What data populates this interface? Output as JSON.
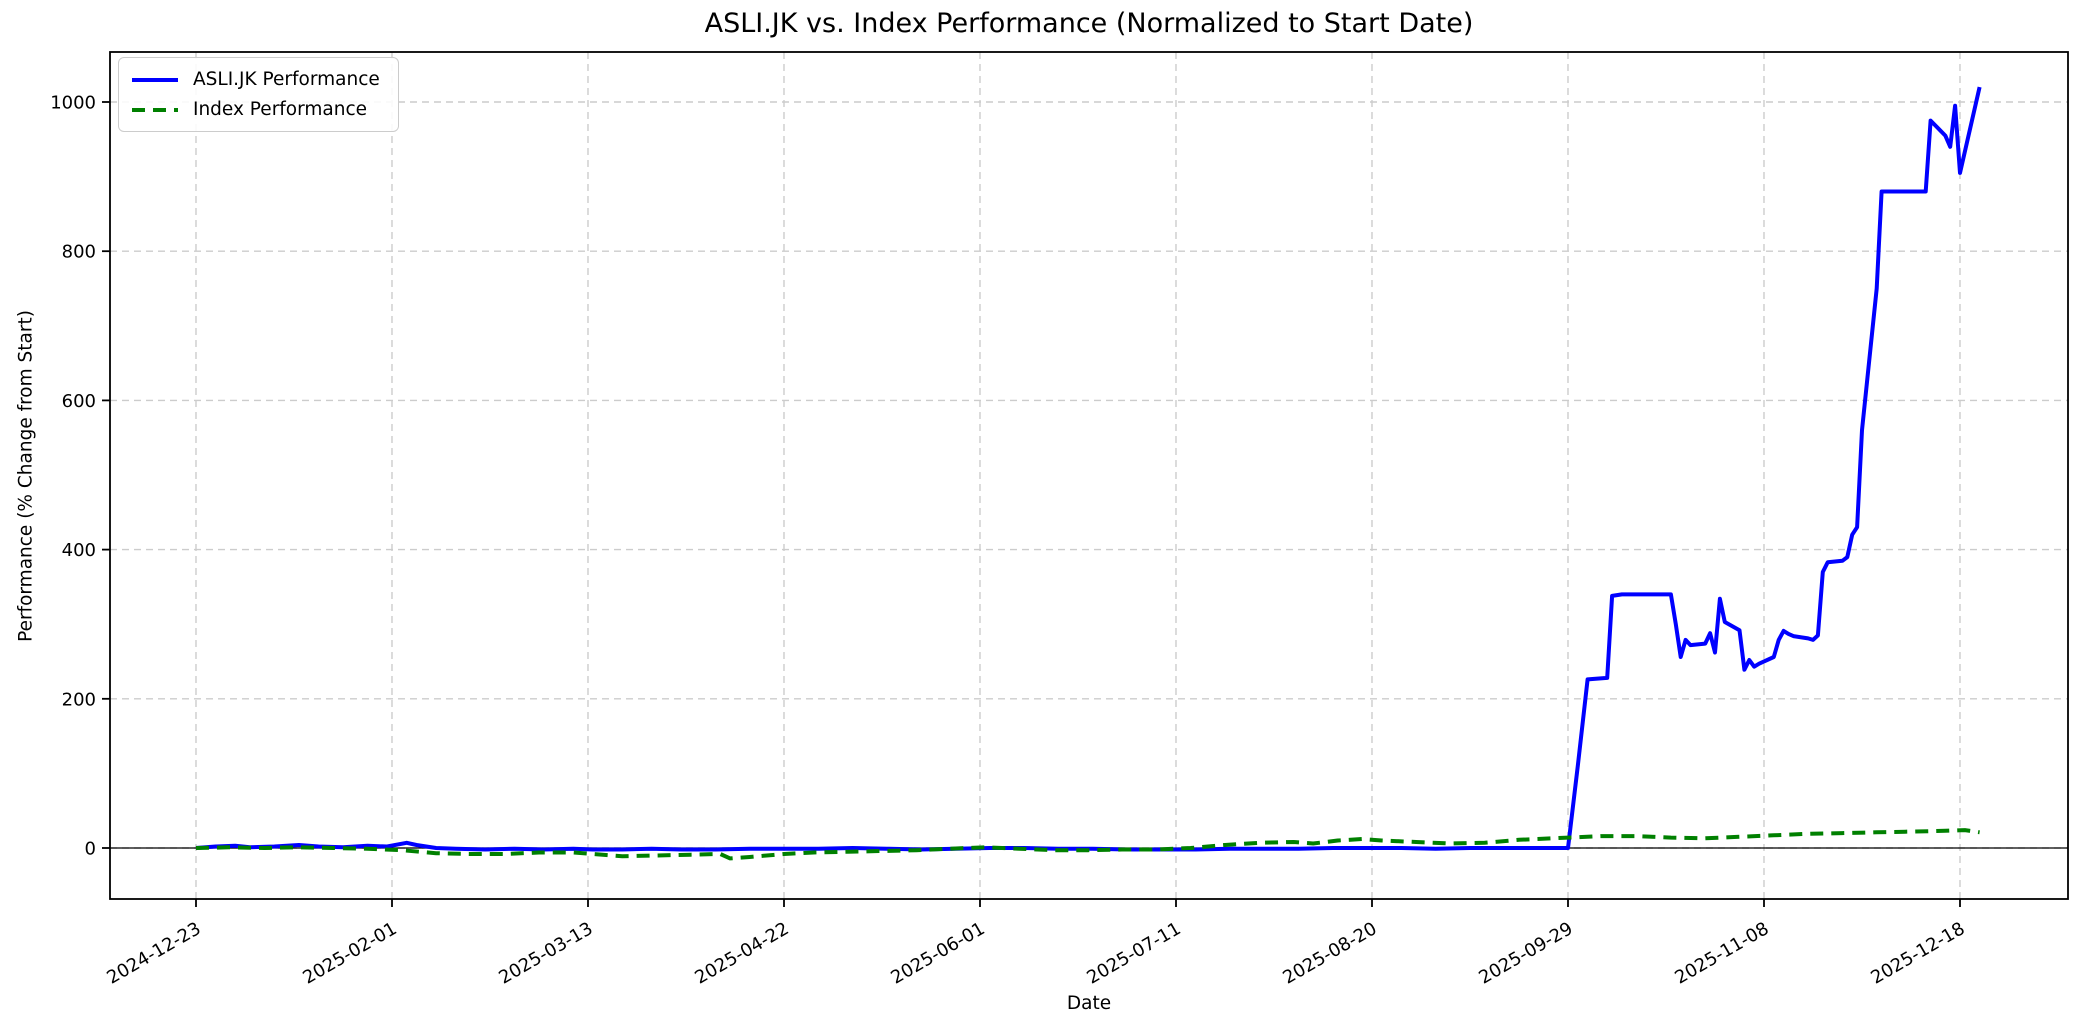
{
  "figure": {
    "background": "#ffffff"
  },
  "chart_data": {
    "type": "line",
    "title": "ASLI.JK vs. Index Performance (Normalized to Start Date)",
    "xlabel": "Date",
    "ylabel": "Performance (% Change from Start)",
    "grid": true,
    "grid_color": "#cccccc",
    "zero_line_color": "#000000",
    "legend_position": "upper-left",
    "x_start_date": "2024-12-23",
    "x_end_date": "2025-12-22",
    "x_ticks": [
      "2024-12-23",
      "2025-02-01",
      "2025-03-13",
      "2025-04-22",
      "2025-06-01",
      "2025-07-11",
      "2025-08-20",
      "2025-09-29",
      "2025-11-08",
      "2025-12-18"
    ],
    "y_ticks": [
      0,
      200,
      400,
      600,
      800,
      1000
    ],
    "ylim": [
      -68,
      1067
    ],
    "xlim": [
      "2024-12-05",
      "2026-01-09"
    ],
    "series": [
      {
        "name": "ASLI.JK Performance",
        "color": "#0000ff",
        "line_style": "solid",
        "points": [
          [
            "2024-12-23",
            0
          ],
          [
            "2024-12-27",
            2
          ],
          [
            "2024-12-31",
            3
          ],
          [
            "2025-01-03",
            1
          ],
          [
            "2025-01-08",
            2
          ],
          [
            "2025-01-13",
            4
          ],
          [
            "2025-01-17",
            2
          ],
          [
            "2025-01-22",
            1
          ],
          [
            "2025-01-27",
            3
          ],
          [
            "2025-01-31",
            2
          ],
          [
            "2025-02-04",
            7
          ],
          [
            "2025-02-06",
            4
          ],
          [
            "2025-02-10",
            0
          ],
          [
            "2025-02-14",
            -1
          ],
          [
            "2025-02-20",
            -2
          ],
          [
            "2025-02-26",
            -1
          ],
          [
            "2025-03-04",
            -2
          ],
          [
            "2025-03-10",
            -1
          ],
          [
            "2025-03-14",
            -2
          ],
          [
            "2025-03-20",
            -2
          ],
          [
            "2025-03-26",
            -1
          ],
          [
            "2025-04-01",
            -2
          ],
          [
            "2025-04-08",
            -2
          ],
          [
            "2025-04-15",
            -1
          ],
          [
            "2025-04-22",
            -1
          ],
          [
            "2025-04-29",
            -1
          ],
          [
            "2025-05-06",
            0
          ],
          [
            "2025-05-13",
            -1
          ],
          [
            "2025-05-20",
            -2
          ],
          [
            "2025-05-27",
            -1
          ],
          [
            "2025-06-03",
            0
          ],
          [
            "2025-06-10",
            0
          ],
          [
            "2025-06-17",
            -1
          ],
          [
            "2025-06-24",
            -1
          ],
          [
            "2025-07-01",
            -2
          ],
          [
            "2025-07-08",
            -2
          ],
          [
            "2025-07-15",
            -2
          ],
          [
            "2025-07-22",
            -1
          ],
          [
            "2025-07-29",
            -1
          ],
          [
            "2025-08-05",
            -1
          ],
          [
            "2025-08-12",
            0
          ],
          [
            "2025-08-19",
            0
          ],
          [
            "2025-08-26",
            0
          ],
          [
            "2025-09-02",
            -1
          ],
          [
            "2025-09-09",
            0
          ],
          [
            "2025-09-16",
            0
          ],
          [
            "2025-09-23",
            0
          ],
          [
            "2025-09-29",
            0
          ],
          [
            "2025-10-01",
            110
          ],
          [
            "2025-10-03",
            226
          ],
          [
            "2025-10-07",
            228
          ],
          [
            "2025-10-08",
            338
          ],
          [
            "2025-10-10",
            340
          ],
          [
            "2025-10-20",
            340
          ],
          [
            "2025-10-21",
            300
          ],
          [
            "2025-10-22",
            256
          ],
          [
            "2025-10-23",
            279
          ],
          [
            "2025-10-24",
            272
          ],
          [
            "2025-10-27",
            274
          ],
          [
            "2025-10-28",
            288
          ],
          [
            "2025-10-29",
            262
          ],
          [
            "2025-10-30",
            334
          ],
          [
            "2025-10-31",
            303
          ],
          [
            "2025-11-03",
            292
          ],
          [
            "2025-11-04",
            239
          ],
          [
            "2025-11-05",
            252
          ],
          [
            "2025-11-06",
            243
          ],
          [
            "2025-11-07",
            247
          ],
          [
            "2025-11-10",
            256
          ],
          [
            "2025-11-11",
            279
          ],
          [
            "2025-11-12",
            291
          ],
          [
            "2025-11-13",
            287
          ],
          [
            "2025-11-14",
            284
          ],
          [
            "2025-11-17",
            281
          ],
          [
            "2025-11-18",
            279
          ],
          [
            "2025-11-19",
            285
          ],
          [
            "2025-11-20",
            370
          ],
          [
            "2025-11-21",
            383
          ],
          [
            "2025-11-24",
            385
          ],
          [
            "2025-11-25",
            390
          ],
          [
            "2025-11-26",
            420
          ],
          [
            "2025-11-27",
            430
          ],
          [
            "2025-11-28",
            560
          ],
          [
            "2025-12-01",
            750
          ],
          [
            "2025-12-02",
            880
          ],
          [
            "2025-12-11",
            880
          ],
          [
            "2025-12-12",
            975
          ],
          [
            "2025-12-15",
            955
          ],
          [
            "2025-12-16",
            940
          ],
          [
            "2025-12-17",
            995
          ],
          [
            "2025-12-18",
            905
          ],
          [
            "2025-12-22",
            1020
          ]
        ]
      },
      {
        "name": "Index Performance",
        "color": "#008000",
        "line_style": "dashed",
        "points": [
          [
            "2024-12-23",
            0
          ],
          [
            "2024-12-30",
            1
          ],
          [
            "2025-01-06",
            0
          ],
          [
            "2025-01-13",
            1
          ],
          [
            "2025-01-20",
            0
          ],
          [
            "2025-01-27",
            -1
          ],
          [
            "2025-02-03",
            -3
          ],
          [
            "2025-02-10",
            -7
          ],
          [
            "2025-02-17",
            -8
          ],
          [
            "2025-02-24",
            -8
          ],
          [
            "2025-03-03",
            -6
          ],
          [
            "2025-03-10",
            -6
          ],
          [
            "2025-03-14",
            -8
          ],
          [
            "2025-03-20",
            -11
          ],
          [
            "2025-03-27",
            -10
          ],
          [
            "2025-04-03",
            -9
          ],
          [
            "2025-04-09",
            -8
          ],
          [
            "2025-04-11",
            -14
          ],
          [
            "2025-04-15",
            -12
          ],
          [
            "2025-04-22",
            -8
          ],
          [
            "2025-04-28",
            -6
          ],
          [
            "2025-05-05",
            -5
          ],
          [
            "2025-05-12",
            -4
          ],
          [
            "2025-05-19",
            -3
          ],
          [
            "2025-05-26",
            -1
          ],
          [
            "2025-06-02",
            1
          ],
          [
            "2025-06-09",
            -1
          ],
          [
            "2025-06-16",
            -3
          ],
          [
            "2025-06-23",
            -3
          ],
          [
            "2025-06-30",
            -2
          ],
          [
            "2025-07-07",
            -2
          ],
          [
            "2025-07-14",
            0
          ],
          [
            "2025-07-21",
            4
          ],
          [
            "2025-07-28",
            7
          ],
          [
            "2025-08-04",
            8
          ],
          [
            "2025-08-08",
            6
          ],
          [
            "2025-08-13",
            10
          ],
          [
            "2025-08-18",
            12
          ],
          [
            "2025-08-22",
            10
          ],
          [
            "2025-08-29",
            8
          ],
          [
            "2025-09-05",
            6
          ],
          [
            "2025-09-12",
            7
          ],
          [
            "2025-09-19",
            11
          ],
          [
            "2025-09-26",
            13
          ],
          [
            "2025-09-29",
            14
          ],
          [
            "2025-10-06",
            16
          ],
          [
            "2025-10-13",
            16
          ],
          [
            "2025-10-20",
            14
          ],
          [
            "2025-10-27",
            13
          ],
          [
            "2025-11-03",
            15
          ],
          [
            "2025-11-10",
            17
          ],
          [
            "2025-11-17",
            19
          ],
          [
            "2025-11-24",
            20
          ],
          [
            "2025-12-01",
            21
          ],
          [
            "2025-12-08",
            22
          ],
          [
            "2025-12-15",
            23
          ],
          [
            "2025-12-19",
            24
          ],
          [
            "2025-12-22",
            21
          ]
        ]
      }
    ]
  }
}
